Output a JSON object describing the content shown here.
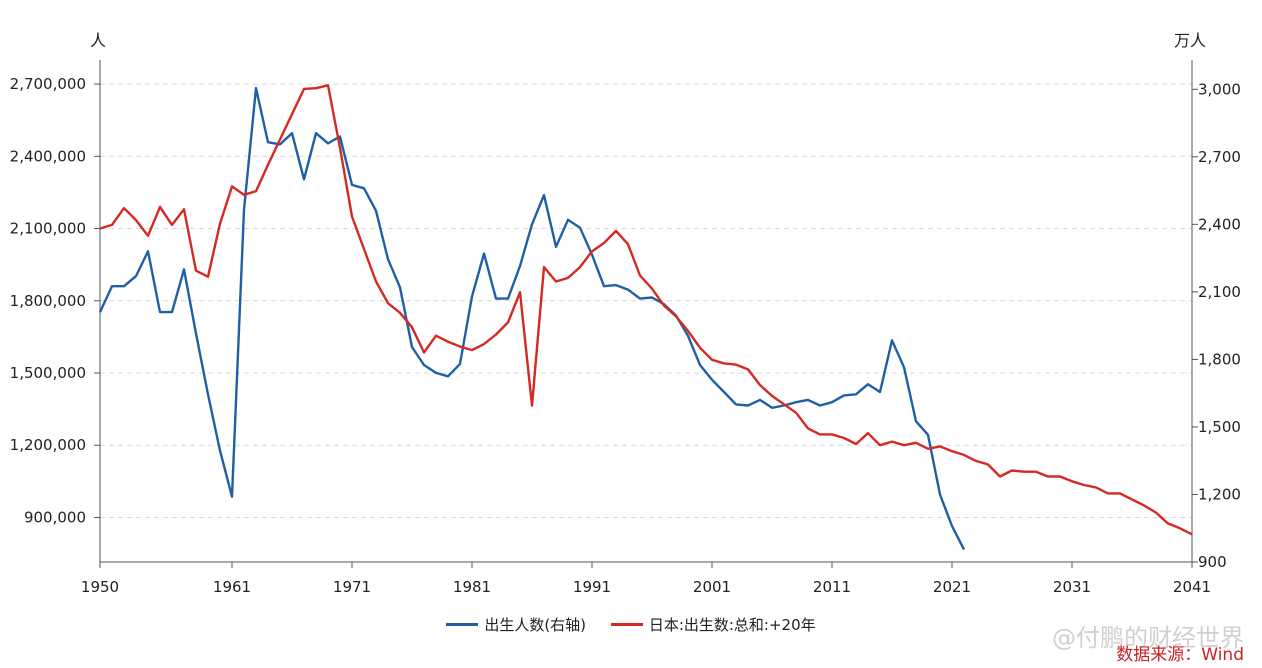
{
  "chart_data": {
    "type": "line",
    "left_axis_unit": "人",
    "right_axis_unit": "万人",
    "x_ticks": [
      1950,
      1961,
      1971,
      1981,
      1991,
      2001,
      2011,
      2021,
      2031,
      2041
    ],
    "left_ticks": [
      "2,700,000",
      "2,400,000",
      "2,100,000",
      "1,800,000",
      "1,500,000",
      "1,200,000",
      "900,000"
    ],
    "left_tick_values": [
      2700000,
      2400000,
      2100000,
      1800000,
      1500000,
      1200000,
      900000
    ],
    "right_ticks": [
      "3,000",
      "2,700",
      "2,400",
      "2,100",
      "1,800",
      "1,500",
      "1,200",
      "900"
    ],
    "right_tick_values": [
      3000,
      2700,
      2400,
      2100,
      1800,
      1500,
      1200,
      900
    ],
    "left_ylim": [
      715000,
      2800000
    ],
    "right_ylim": [
      900,
      3130
    ],
    "xlim": [
      1950,
      2041
    ],
    "grid": true,
    "series": [
      {
        "name": "出生人数(右轴)",
        "axis": "right",
        "color": "#1f5fa6",
        "points": [
          [
            1950,
            2010
          ],
          [
            1951,
            2125
          ],
          [
            1952,
            2125
          ],
          [
            1953,
            2170
          ],
          [
            1954,
            2280
          ],
          [
            1955,
            2010
          ],
          [
            1956,
            2010
          ],
          [
            1957,
            2200
          ],
          [
            1958,
            1915
          ],
          [
            1959,
            1645
          ],
          [
            1960,
            1395
          ],
          [
            1961,
            1190
          ],
          [
            1962,
            2465
          ],
          [
            1963,
            3005
          ],
          [
            1964,
            2765
          ],
          [
            1965,
            2755
          ],
          [
            1966,
            2805
          ],
          [
            1967,
            2600
          ],
          [
            1968,
            2805
          ],
          [
            1969,
            2760
          ],
          [
            1970,
            2790
          ],
          [
            1971,
            2575
          ],
          [
            1972,
            2560
          ],
          [
            1973,
            2460
          ],
          [
            1974,
            2245
          ],
          [
            1975,
            2120
          ],
          [
            1976,
            1855
          ],
          [
            1977,
            1775
          ],
          [
            1978,
            1740
          ],
          [
            1979,
            1725
          ],
          [
            1980,
            1780
          ],
          [
            1981,
            2080
          ],
          [
            1982,
            2270
          ],
          [
            1983,
            2070
          ],
          [
            1984,
            2070
          ],
          [
            1985,
            2215
          ],
          [
            1986,
            2400
          ],
          [
            1987,
            2530
          ],
          [
            1988,
            2300
          ],
          [
            1989,
            2420
          ],
          [
            1990,
            2385
          ],
          [
            1991,
            2265
          ],
          [
            1992,
            2125
          ],
          [
            1993,
            2130
          ],
          [
            1994,
            2110
          ],
          [
            1995,
            2070
          ],
          [
            1996,
            2075
          ],
          [
            1997,
            2045
          ],
          [
            1998,
            1995
          ],
          [
            1999,
            1905
          ],
          [
            2000,
            1775
          ],
          [
            2001,
            1710
          ],
          [
            2002,
            1655
          ],
          [
            2003,
            1600
          ],
          [
            2004,
            1595
          ],
          [
            2005,
            1620
          ],
          [
            2006,
            1585
          ],
          [
            2007,
            1595
          ],
          [
            2008,
            1610
          ],
          [
            2009,
            1620
          ],
          [
            2010,
            1595
          ],
          [
            2011,
            1610
          ],
          [
            2012,
            1640
          ],
          [
            2013,
            1645
          ],
          [
            2014,
            1690
          ],
          [
            2015,
            1655
          ],
          [
            2016,
            1885
          ],
          [
            2017,
            1765
          ],
          [
            2018,
            1525
          ],
          [
            2019,
            1465
          ],
          [
            2020,
            1200
          ],
          [
            2021,
            1060
          ],
          [
            2022,
            955
          ]
        ]
      },
      {
        "name": "日本:出生数:总和:+20年",
        "axis": "left",
        "color": "#d42a23",
        "points": [
          [
            1950,
            2100000
          ],
          [
            1951,
            2115000
          ],
          [
            1952,
            2185000
          ],
          [
            1953,
            2135000
          ],
          [
            1954,
            2070000
          ],
          [
            1955,
            2190000
          ],
          [
            1956,
            2115000
          ],
          [
            1957,
            2180000
          ],
          [
            1958,
            1925000
          ],
          [
            1959,
            1900000
          ],
          [
            1960,
            2120000
          ],
          [
            1961,
            2275000
          ],
          [
            1962,
            2240000
          ],
          [
            1963,
            2255000
          ],
          [
            1964,
            2365000
          ],
          [
            1965,
            2470000
          ],
          [
            1966,
            2575000
          ],
          [
            1967,
            2680000
          ],
          [
            1968,
            2683000
          ],
          [
            1969,
            2695000
          ],
          [
            1970,
            2435000
          ],
          [
            1971,
            2150000
          ],
          [
            1972,
            2015000
          ],
          [
            1973,
            1880000
          ],
          [
            1974,
            1790000
          ],
          [
            1975,
            1750000
          ],
          [
            1976,
            1690000
          ],
          [
            1977,
            1585000
          ],
          [
            1978,
            1655000
          ],
          [
            1979,
            1630000
          ],
          [
            1980,
            1610000
          ],
          [
            1981,
            1595000
          ],
          [
            1982,
            1620000
          ],
          [
            1983,
            1660000
          ],
          [
            1984,
            1710000
          ],
          [
            1985,
            1835000
          ],
          [
            1986,
            1365000
          ],
          [
            1987,
            1940000
          ],
          [
            1988,
            1880000
          ],
          [
            1989,
            1895000
          ],
          [
            1990,
            1940000
          ],
          [
            1991,
            2005000
          ],
          [
            1992,
            2040000
          ],
          [
            1993,
            2090000
          ],
          [
            1994,
            2035000
          ],
          [
            1995,
            1905000
          ],
          [
            1996,
            1850000
          ],
          [
            1997,
            1780000
          ],
          [
            1998,
            1735000
          ],
          [
            1999,
            1675000
          ],
          [
            2000,
            1605000
          ],
          [
            2001,
            1555000
          ],
          [
            2002,
            1540000
          ],
          [
            2003,
            1535000
          ],
          [
            2004,
            1515000
          ],
          [
            2005,
            1450000
          ],
          [
            2006,
            1405000
          ],
          [
            2007,
            1370000
          ],
          [
            2008,
            1335000
          ],
          [
            2009,
            1270000
          ],
          [
            2010,
            1245000
          ],
          [
            2011,
            1245000
          ],
          [
            2012,
            1230000
          ],
          [
            2013,
            1205000
          ],
          [
            2014,
            1250000
          ],
          [
            2015,
            1200000
          ],
          [
            2016,
            1215000
          ],
          [
            2017,
            1200000
          ],
          [
            2018,
            1210000
          ],
          [
            2019,
            1185000
          ],
          [
            2020,
            1195000
          ],
          [
            2021,
            1175000
          ],
          [
            2022,
            1160000
          ],
          [
            2023,
            1135000
          ],
          [
            2024,
            1120000
          ],
          [
            2025,
            1070000
          ],
          [
            2026,
            1095000
          ],
          [
            2027,
            1090000
          ],
          [
            2028,
            1090000
          ],
          [
            2029,
            1070000
          ],
          [
            2030,
            1070000
          ],
          [
            2031,
            1050000
          ],
          [
            2032,
            1035000
          ],
          [
            2033,
            1025000
          ],
          [
            2034,
            1000000
          ],
          [
            2035,
            1000000
          ],
          [
            2036,
            975000
          ],
          [
            2037,
            950000
          ],
          [
            2038,
            920000
          ],
          [
            2039,
            875000
          ],
          [
            2040,
            855000
          ],
          [
            2041,
            830000
          ]
        ]
      }
    ]
  },
  "legend": {
    "item1": "出生人数(右轴)",
    "item2": "日本:出生数:总和:+20年"
  },
  "watermark": "@付鹏的财经世界",
  "source": "数据来源：Wind"
}
